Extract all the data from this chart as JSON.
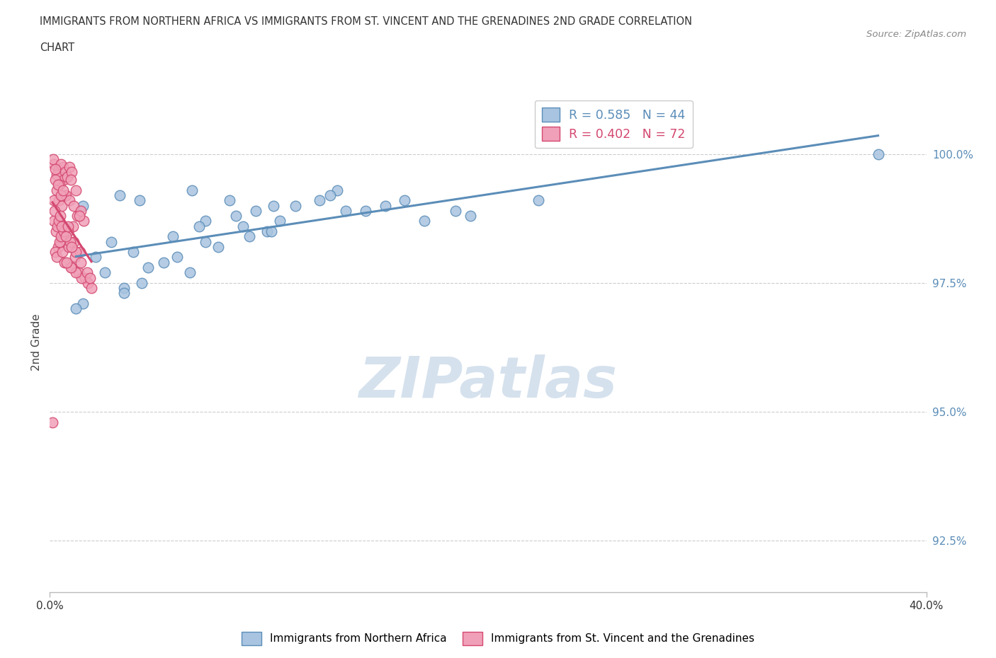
{
  "title_line1": "IMMIGRANTS FROM NORTHERN AFRICA VS IMMIGRANTS FROM ST. VINCENT AND THE GRENADINES 2ND GRADE CORRELATION",
  "title_line2": "CHART",
  "source": "Source: ZipAtlas.com",
  "ylabel": "2nd Grade",
  "y_ticks": [
    92.5,
    95.0,
    97.5,
    100.0
  ],
  "y_tick_labels": [
    "92.5%",
    "95.0%",
    "97.5%",
    "100.0%"
  ],
  "xlim": [
    0.0,
    40.0
  ],
  "ylim": [
    91.5,
    101.2
  ],
  "blue_color": "#a8c4e0",
  "blue_edge_color": "#5b8db8",
  "blue_line_color": "#5b8db8",
  "pink_color": "#f0a0b8",
  "pink_edge_color": "#d44870",
  "pink_line_color": "#d44870",
  "watermark_text": "ZIPatlas",
  "watermark_color": "#c8d8e8",
  "legend_blue_label": "R = 0.585   N = 44",
  "legend_pink_label": "R = 0.402   N = 72",
  "bottom_legend_blue": "Immigrants from Northern Africa",
  "bottom_legend_pink": "Immigrants from St. Vincent and the Grenadines",
  "blue_scatter_x": [
    1.5,
    3.2,
    4.1,
    2.8,
    6.5,
    8.2,
    7.1,
    9.4,
    10.2,
    5.6,
    3.8,
    2.5,
    6.8,
    8.5,
    11.2,
    12.3,
    13.1,
    9.9,
    7.7,
    4.5,
    2.1,
    3.4,
    5.2,
    7.1,
    8.8,
    10.5,
    14.4,
    16.2,
    12.8,
    9.1,
    6.4,
    4.2,
    3.4,
    1.5,
    5.8,
    10.1,
    13.5,
    15.3,
    17.1,
    19.2,
    18.5,
    22.3,
    37.8,
    1.2
  ],
  "blue_scatter_y": [
    99.0,
    99.2,
    99.1,
    98.3,
    99.3,
    99.1,
    98.7,
    98.9,
    99.0,
    98.4,
    98.1,
    97.7,
    98.6,
    98.8,
    99.0,
    99.1,
    99.3,
    98.5,
    98.2,
    97.8,
    98.0,
    97.4,
    97.9,
    98.3,
    98.6,
    98.7,
    98.9,
    99.1,
    99.2,
    98.4,
    97.7,
    97.5,
    97.3,
    97.1,
    98.0,
    98.5,
    98.9,
    99.0,
    98.7,
    98.8,
    98.9,
    99.1,
    100.0,
    97.0
  ],
  "pink_scatter_x": [
    0.2,
    0.4,
    0.6,
    0.3,
    0.15,
    0.5,
    0.7,
    0.9,
    0.65,
    0.45,
    0.8,
    1.0,
    1.2,
    0.95,
    0.7,
    0.4,
    0.55,
    0.75,
    0.9,
    1.1,
    1.25,
    1.4,
    1.55,
    1.35,
    1.05,
    0.82,
    0.62,
    0.5,
    0.38,
    0.25,
    0.32,
    0.68,
    1.0,
    1.3,
    1.6,
    1.75,
    1.9,
    1.45,
    1.2,
    0.97,
    0.78,
    0.58,
    0.45,
    0.28,
    0.2,
    0.35,
    0.52,
    0.85,
    1.15,
    1.42,
    1.7,
    1.82,
    1.38,
    1.08,
    0.22,
    0.4,
    0.65,
    0.92,
    1.18,
    0.55,
    0.72,
    0.98,
    0.48,
    0.82,
    0.18,
    0.32,
    0.5,
    0.24,
    0.38,
    0.62,
    0.12,
    0.26
  ],
  "pink_scatter_y": [
    99.8,
    99.7,
    99.75,
    99.6,
    99.9,
    99.8,
    99.65,
    99.75,
    99.5,
    99.4,
    99.55,
    99.65,
    99.3,
    99.5,
    99.2,
    99.1,
    99.0,
    99.2,
    99.1,
    99.0,
    98.8,
    98.9,
    98.7,
    98.8,
    98.6,
    98.5,
    98.4,
    98.3,
    98.2,
    98.1,
    98.0,
    97.9,
    97.8,
    97.7,
    97.6,
    97.5,
    97.4,
    97.6,
    97.7,
    97.8,
    97.9,
    98.1,
    98.3,
    98.5,
    98.7,
    98.6,
    98.4,
    98.2,
    98.0,
    97.9,
    97.7,
    97.6,
    98.1,
    98.3,
    98.9,
    98.7,
    98.5,
    98.3,
    98.1,
    98.6,
    98.4,
    98.2,
    98.8,
    98.6,
    99.1,
    99.3,
    99.2,
    99.5,
    99.4,
    99.3,
    94.8,
    99.7
  ]
}
